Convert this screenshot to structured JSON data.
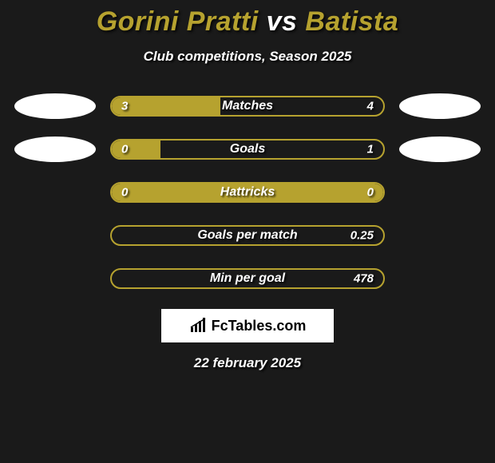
{
  "title": {
    "player1": "Gorini Pratti",
    "vs": "vs",
    "player2": "Batista"
  },
  "subtitle": "Club competitions, Season 2025",
  "avatar_color": "#ffffff",
  "bar_color": "#b6a22f",
  "background_color": "#1a1a1a",
  "stats": [
    {
      "label": "Matches",
      "left_val": "3",
      "right_val": "4",
      "left_pct": 40,
      "right_pct": 0,
      "show_avatars": true
    },
    {
      "label": "Goals",
      "left_val": "0",
      "right_val": "1",
      "left_pct": 18,
      "right_pct": 0,
      "show_avatars": true
    },
    {
      "label": "Hattricks",
      "left_val": "0",
      "right_val": "0",
      "left_pct": 100,
      "right_pct": 0,
      "show_avatars": false
    },
    {
      "label": "Goals per match",
      "left_val": "",
      "right_val": "0.25",
      "left_pct": 0,
      "right_pct": 0,
      "show_avatars": false
    },
    {
      "label": "Min per goal",
      "left_val": "",
      "right_val": "478",
      "left_pct": 0,
      "right_pct": 0,
      "show_avatars": false
    }
  ],
  "logo_text": "FcTables.com",
  "date": "22 february 2025"
}
